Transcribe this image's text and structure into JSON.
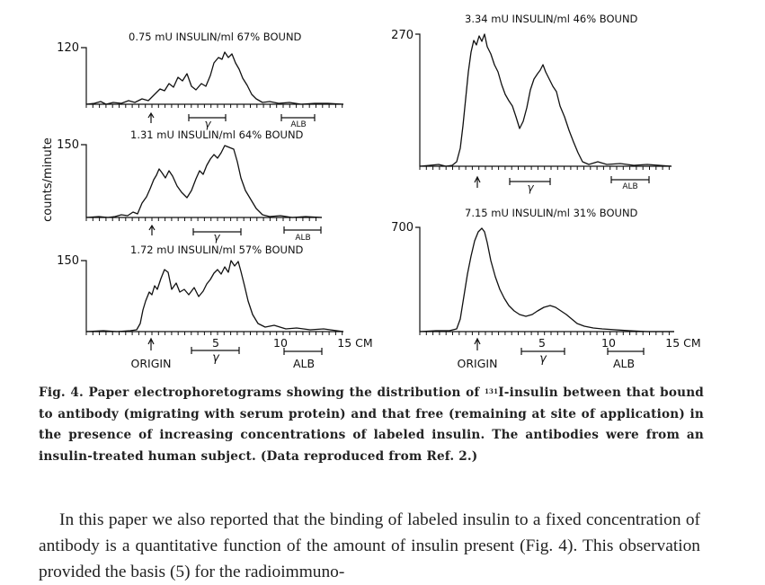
{
  "figure": {
    "y_axis_label": "counts/minute",
    "panels": [
      {
        "title": "0.75 mU INSULIN/ml   67% BOUND",
        "y_tick": "120"
      },
      {
        "title": "1.31 mU INSULIN/ml   64% BOUND",
        "y_tick": "150"
      },
      {
        "title": "1.72 mU INSULIN/ml   57% BOUND",
        "y_tick": "150"
      },
      {
        "title": "3.34 mU INSULIN/ml   46% BOUND",
        "y_tick": "270"
      },
      {
        "title": "7.15 mU INSULIN/ml   31% BOUND",
        "y_tick": "700"
      }
    ],
    "gamma_label": "γ",
    "alb_label": "ALB",
    "x_ticks": [
      "5",
      "10",
      "15 CM"
    ],
    "origin_label": "ORIGIN"
  },
  "caption": {
    "lead": "Fig. 4. Paper electrophoretograms showing the distribution of",
    "isotope": "131",
    "rest": "I-insulin between that bound to antibody (migrating with serum protein) and that free (remaining at site of application) in the presence of increasing concentrations of labeled insulin. The antibodies were from an insulin-treated human subject. (Data reproduced from Ref. 2.)"
  },
  "body": {
    "paragraph": "In this paper we also reported that the binding of labeled insulin to a fixed concentration of antibody is a quantitative function of the amount of insulin present (Fig. 4). This observation provided the basis (5) for the radioimmuno-"
  }
}
